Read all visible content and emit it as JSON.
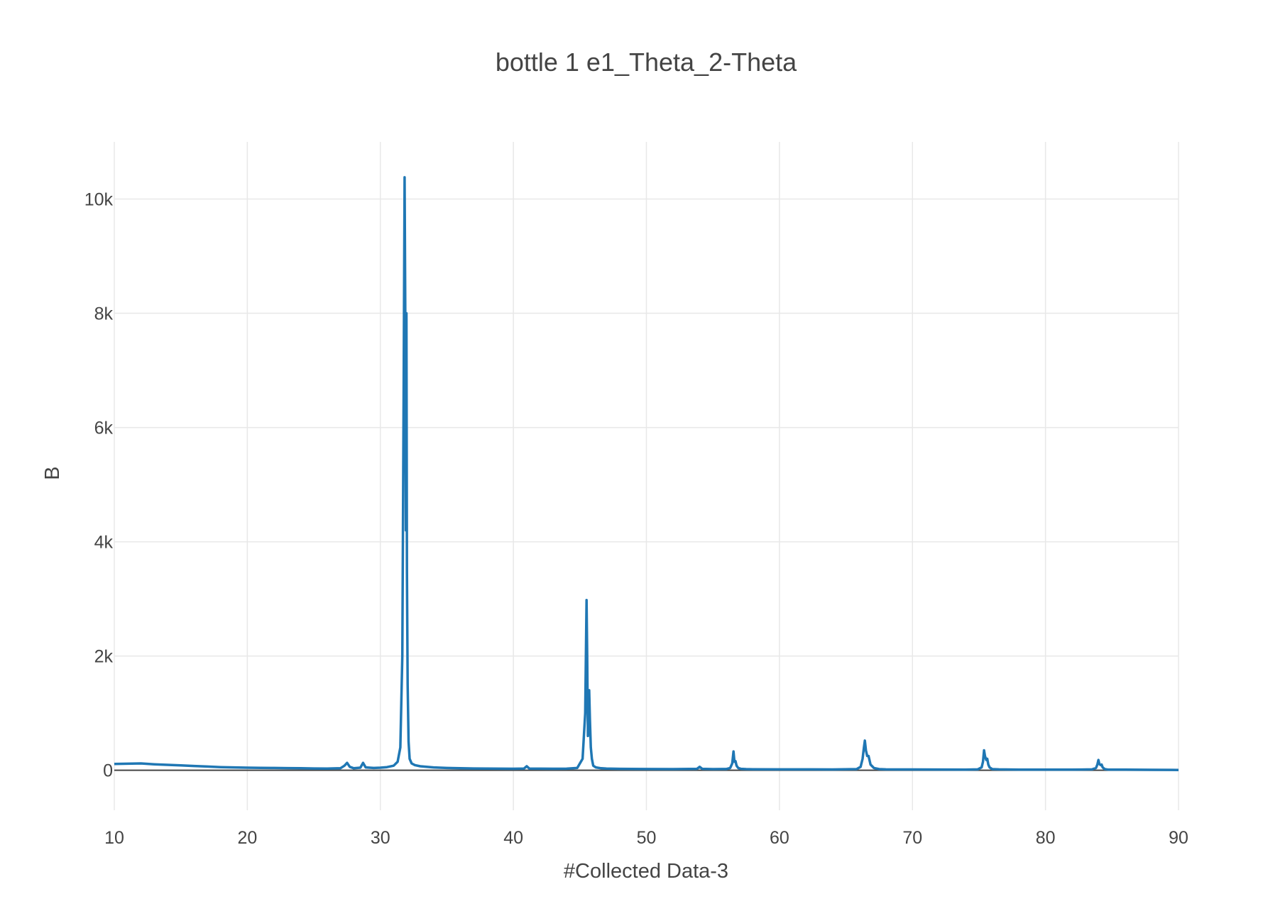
{
  "chart_data": {
    "type": "line",
    "title": "bottle 1 e1_Theta_2-Theta",
    "xlabel": "#Collected Data-3",
    "ylabel": "B",
    "xlim": [
      10,
      90
    ],
    "ylim": [
      -700,
      11000
    ],
    "x_ticks": [
      10,
      20,
      30,
      40,
      50,
      60,
      70,
      80,
      90
    ],
    "x_tick_labels": [
      "10",
      "20",
      "30",
      "40",
      "50",
      "60",
      "70",
      "80",
      "90"
    ],
    "y_ticks": [
      0,
      2000,
      4000,
      6000,
      8000,
      10000
    ],
    "y_tick_labels": [
      "0",
      "2k",
      "4k",
      "6k",
      "8k",
      "10k"
    ],
    "grid": true,
    "legend": "none",
    "line_color": "#1f77b4",
    "series": [
      {
        "x": [
          10,
          11,
          12,
          13,
          14,
          15,
          16,
          17,
          18,
          19,
          20,
          21,
          22,
          23,
          24,
          25,
          26,
          27,
          27.3,
          27.5,
          27.7,
          28,
          28.5,
          28.7,
          28.9,
          29.5,
          30,
          30.5,
          31,
          31.3,
          31.5,
          31.65,
          31.75,
          31.82,
          31.88,
          31.92,
          31.96,
          32.0,
          32.05,
          32.12,
          32.2,
          32.35,
          32.6,
          33,
          34,
          35,
          36,
          37,
          38,
          39,
          40,
          40.8,
          41.0,
          41.2,
          42,
          43,
          44,
          44.8,
          45.2,
          45.4,
          45.5,
          45.55,
          45.6,
          45.65,
          45.7,
          45.75,
          45.82,
          45.9,
          46.0,
          46.2,
          46.6,
          47,
          48,
          50,
          52,
          53.8,
          54.0,
          54.2,
          55,
          56,
          56.3,
          56.45,
          56.55,
          56.62,
          56.7,
          56.78,
          56.9,
          57.1,
          57.5,
          58,
          60,
          62,
          64,
          65.8,
          66.1,
          66.25,
          66.35,
          66.42,
          66.5,
          66.6,
          66.7,
          66.85,
          67.1,
          67.5,
          68,
          70,
          72,
          74,
          74.9,
          75.2,
          75.3,
          75.38,
          75.45,
          75.55,
          75.62,
          75.7,
          75.8,
          76.0,
          76.5,
          78,
          80,
          82,
          83.5,
          83.8,
          83.9,
          83.98,
          84.05,
          84.15,
          84.22,
          84.3,
          84.45,
          84.7,
          86,
          88,
          90
        ],
        "y": [
          110,
          115,
          120,
          105,
          95,
          85,
          75,
          65,
          55,
          50,
          45,
          42,
          40,
          38,
          35,
          32,
          30,
          35,
          80,
          130,
          60,
          35,
          45,
          130,
          50,
          40,
          45,
          55,
          80,
          150,
          400,
          2000,
          6500,
          10380,
          7700,
          4200,
          8000,
          3500,
          1500,
          500,
          200,
          120,
          90,
          70,
          50,
          40,
          35,
          32,
          30,
          28,
          26,
          30,
          70,
          30,
          28,
          26,
          28,
          40,
          200,
          1000,
          2980,
          2000,
          600,
          1000,
          1400,
          900,
          400,
          200,
          80,
          50,
          35,
          30,
          25,
          22,
          20,
          25,
          60,
          25,
          20,
          22,
          40,
          120,
          330,
          150,
          160,
          80,
          40,
          25,
          20,
          18,
          16,
          15,
          14,
          20,
          60,
          200,
          400,
          520,
          350,
          250,
          250,
          100,
          40,
          20,
          15,
          14,
          13,
          12,
          15,
          50,
          150,
          350,
          250,
          180,
          200,
          100,
          50,
          20,
          15,
          12,
          10,
          10,
          15,
          40,
          100,
          180,
          110,
          90,
          100,
          50,
          20,
          12,
          10,
          8,
          5
        ]
      }
    ]
  }
}
